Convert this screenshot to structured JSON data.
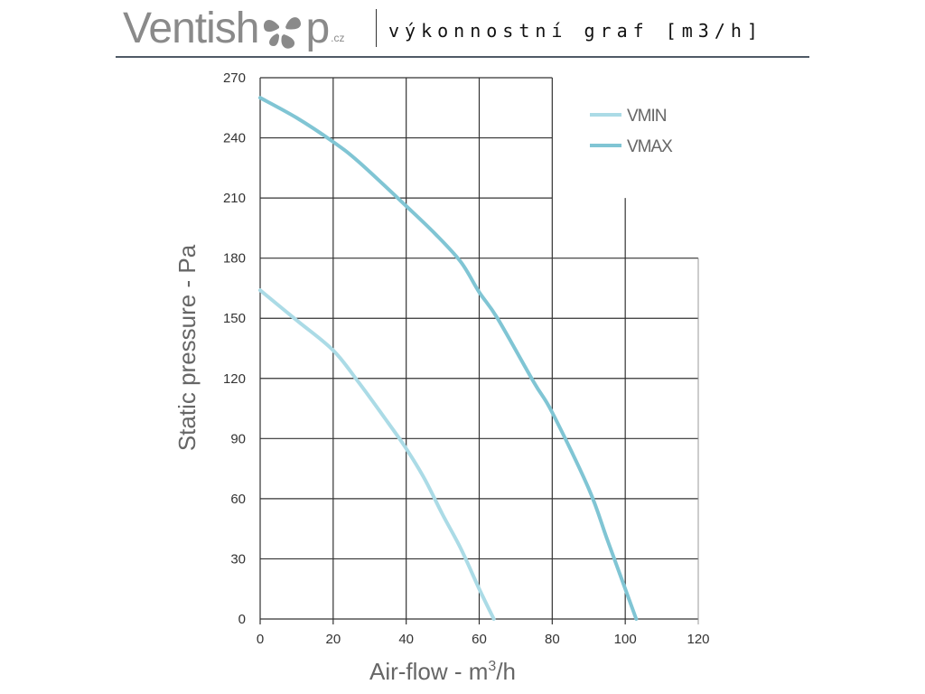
{
  "header": {
    "logo_text_prefix": "Ventish",
    "logo_text_suffix": "p",
    "logo_tld": ".cz",
    "subtitle": "výkonnostní graf [m3/h]"
  },
  "chart_data": {
    "type": "line",
    "title": "výkonnostní graf [m3/h]",
    "xlabel": "Air-flow - m3/h",
    "xlabel_main": "Air-flow - m",
    "xlabel_sup": "3",
    "xlabel_tail": "/h",
    "ylabel": "Static pressure - Pa",
    "xlim": [
      0,
      120
    ],
    "ylim": [
      0,
      270
    ],
    "xticks": [
      0,
      20,
      40,
      60,
      80,
      100,
      120
    ],
    "yticks": [
      0,
      30,
      60,
      90,
      120,
      150,
      180,
      210,
      240,
      270
    ],
    "grid": true,
    "legend_position": "top-right",
    "series": [
      {
        "name": "VMIN",
        "color": "#abdbe6",
        "x": [
          0,
          10,
          20,
          27,
          35,
          40,
          45,
          50,
          55,
          60,
          64
        ],
        "y": [
          164,
          149,
          134,
          118,
          98,
          85,
          70,
          52,
          35,
          15,
          0
        ]
      },
      {
        "name": "VMAX",
        "color": "#80c5d4",
        "x": [
          0,
          10,
          20,
          27,
          40,
          48,
          55,
          60,
          65,
          75,
          80,
          90,
          95,
          100,
          103
        ],
        "y": [
          260,
          250,
          238,
          228,
          206,
          192,
          178,
          163,
          150,
          118,
          103,
          65,
          40,
          15,
          0
        ]
      }
    ]
  }
}
